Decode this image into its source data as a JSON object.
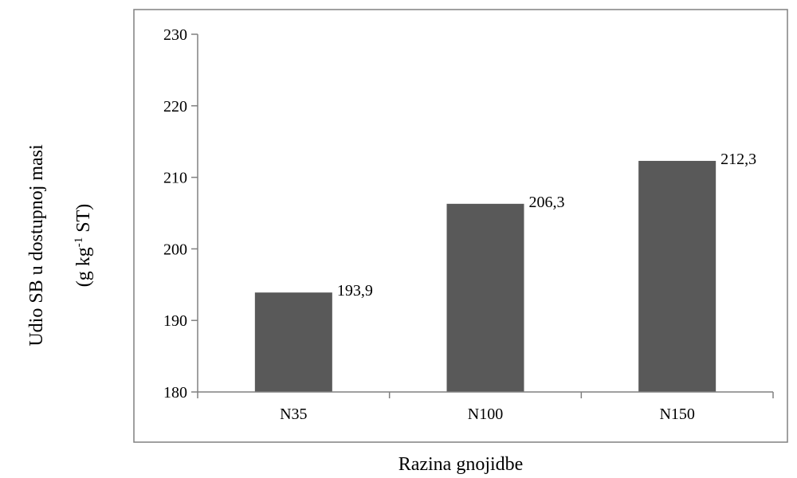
{
  "chart_data": {
    "type": "bar",
    "categories": [
      "N35",
      "N100",
      "N150"
    ],
    "values": [
      193.9,
      206.3,
      212.3
    ],
    "data_labels": [
      "193,9",
      "206,3",
      "212,3"
    ],
    "title": "",
    "xlabel": "Razina gnojidbe",
    "ylabel_line1": "Udio SB u dostupnoj masi",
    "ylabel_line2_prefix": "(g kg",
    "ylabel_line2_sup": "-1",
    "ylabel_line2_suffix": " ST)",
    "ylim": [
      180,
      230
    ],
    "yticks": [
      180,
      190,
      200,
      210,
      220,
      230
    ],
    "grid": false,
    "legend": "none",
    "bar_color": "#595959",
    "axis_color": "#808080"
  }
}
